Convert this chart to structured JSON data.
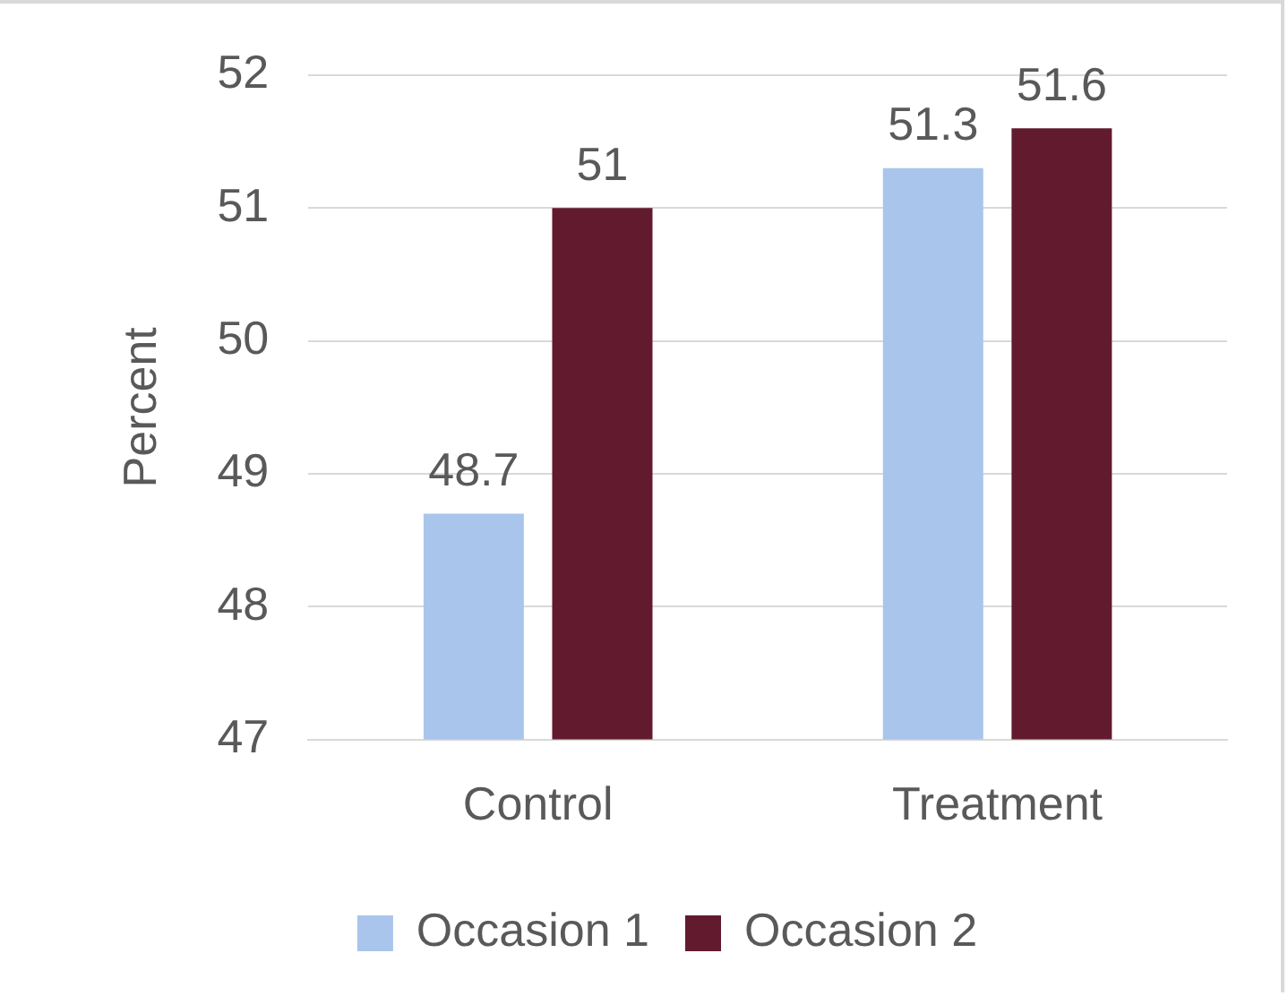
{
  "chart_data": {
    "type": "bar",
    "ylabel": "Percent",
    "categories": [
      "Control",
      "Treatment"
    ],
    "series": [
      {
        "name": "Occasion 1",
        "color": "#a9c5eb",
        "values": [
          48.7,
          51.3
        ]
      },
      {
        "name": "Occasion 2",
        "color": "#621b2e",
        "values": [
          51,
          51.6
        ]
      }
    ],
    "ylim": [
      47,
      52
    ],
    "yticks": [
      47,
      48,
      49,
      50,
      51,
      52
    ],
    "grid": "y",
    "legend": "bottom",
    "data_labels": true
  }
}
